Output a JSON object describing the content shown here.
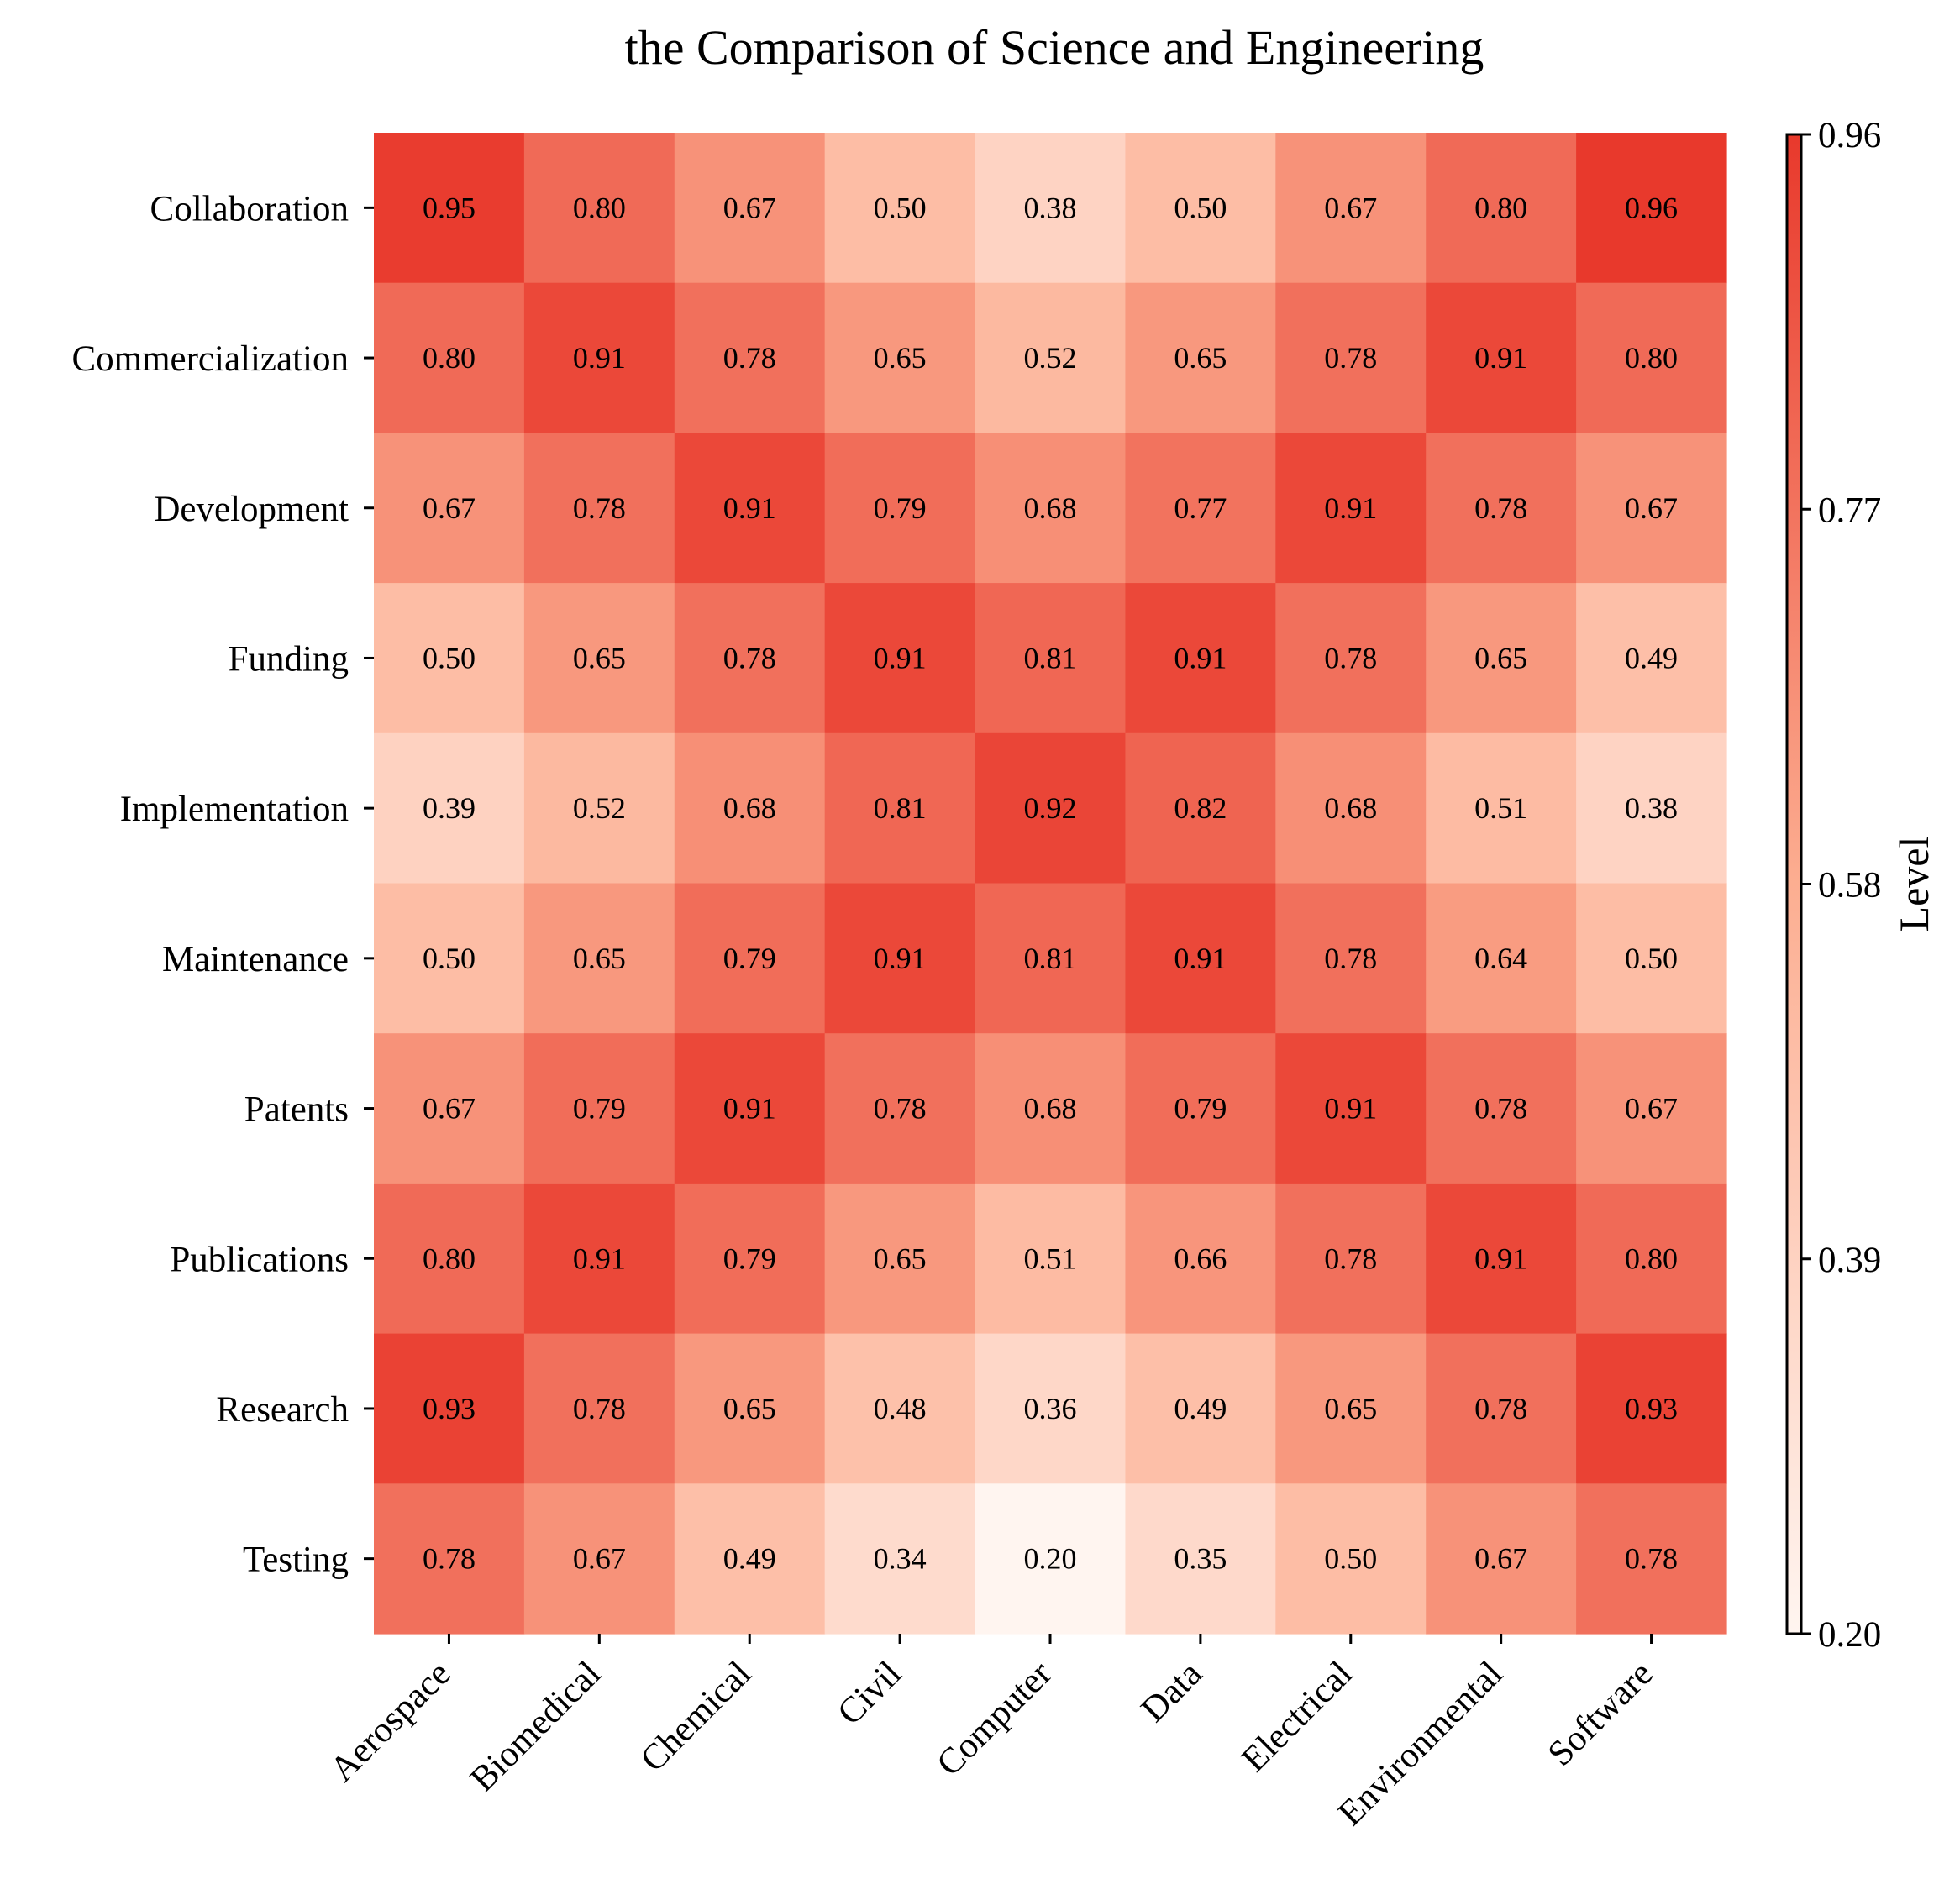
{
  "chart_data": {
    "type": "heatmap",
    "title": "the Comparison of Science and Engineering",
    "x_categories": [
      "Aerospace",
      "Biomedical",
      "Chemical",
      "Civil",
      "Computer",
      "Data",
      "Electrical",
      "Environmental",
      "Software"
    ],
    "y_categories": [
      "Collaboration",
      "Commercialization",
      "Development",
      "Funding",
      "Implementation",
      "Maintenance",
      "Patents",
      "Publications",
      "Research",
      "Testing"
    ],
    "values": [
      [
        0.95,
        0.8,
        0.67,
        0.5,
        0.38,
        0.5,
        0.67,
        0.8,
        0.96
      ],
      [
        0.8,
        0.91,
        0.78,
        0.65,
        0.52,
        0.65,
        0.78,
        0.91,
        0.8
      ],
      [
        0.67,
        0.78,
        0.91,
        0.79,
        0.68,
        0.77,
        0.91,
        0.78,
        0.67
      ],
      [
        0.5,
        0.65,
        0.78,
        0.91,
        0.81,
        0.91,
        0.78,
        0.65,
        0.49
      ],
      [
        0.39,
        0.52,
        0.68,
        0.81,
        0.92,
        0.82,
        0.68,
        0.51,
        0.38
      ],
      [
        0.5,
        0.65,
        0.79,
        0.91,
        0.81,
        0.91,
        0.78,
        0.64,
        0.5
      ],
      [
        0.67,
        0.79,
        0.91,
        0.78,
        0.68,
        0.79,
        0.91,
        0.78,
        0.67
      ],
      [
        0.8,
        0.91,
        0.79,
        0.65,
        0.51,
        0.66,
        0.78,
        0.91,
        0.8
      ],
      [
        0.93,
        0.78,
        0.65,
        0.48,
        0.36,
        0.49,
        0.65,
        0.78,
        0.93
      ],
      [
        0.78,
        0.67,
        0.49,
        0.34,
        0.2,
        0.35,
        0.5,
        0.67,
        0.78
      ]
    ],
    "value_format_decimals": 2,
    "colorbar": {
      "label": "Level",
      "range": [
        0.2,
        0.96
      ],
      "ticks": [
        "0.20",
        "0.39",
        "0.58",
        "0.77",
        "0.96"
      ]
    },
    "colormap": {
      "low": "#fff5f0",
      "mid": "#fcae91",
      "high": "#e8392c"
    },
    "grid": false
  }
}
